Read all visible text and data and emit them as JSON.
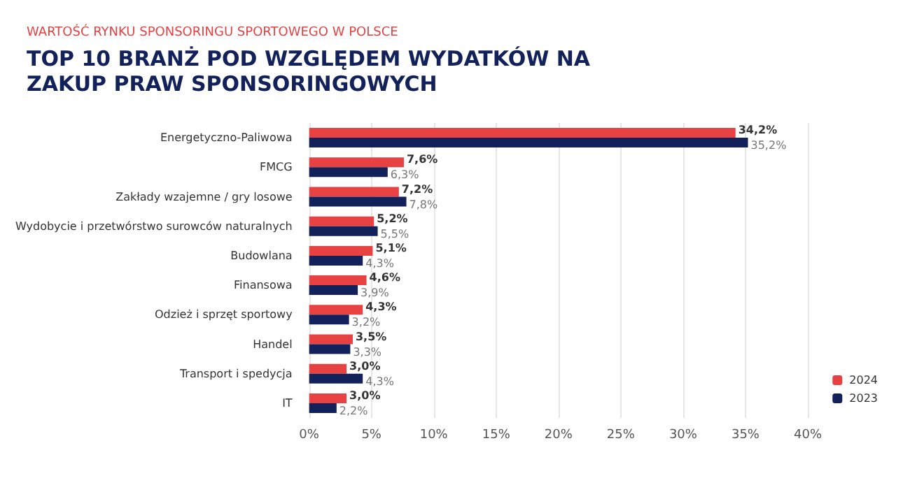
{
  "chart_data": {
    "type": "bar",
    "orientation": "horizontal",
    "subtitle": "WARTOŚĆ RYNKU SPONSORINGU SPORTOWEGO W POLSCE",
    "title": "TOP 10 BRANŻ POD WZGLĘDEM WYDATKÓW NA ZAKUP PRAW SPONSORINGOWYCH",
    "categories": [
      "Energetyczno-Paliwowa",
      "FMCG",
      "Zakłady wzajemne / gry losowe",
      "Wydobycie i przetwórstwo surowców naturalnych",
      "Budowlana",
      "Finansowa",
      "Odzież i sprzęt sportowy",
      "Handel",
      "Transport i spedycja",
      "IT"
    ],
    "series": [
      {
        "name": "2024",
        "color": "#e84142",
        "values": [
          34.2,
          7.6,
          7.2,
          5.2,
          5.1,
          4.6,
          4.3,
          3.5,
          3.0,
          3.0
        ],
        "value_labels": [
          "34,2%",
          "7,6%",
          "7,2%",
          "5,2%",
          "5,1%",
          "4,6%",
          "4,3%",
          "3,5%",
          "3,0%",
          "3,0%"
        ]
      },
      {
        "name": "2023",
        "color": "#13215a",
        "values": [
          35.2,
          6.3,
          7.8,
          5.5,
          4.3,
          3.9,
          3.2,
          3.3,
          4.3,
          2.2
        ],
        "value_labels": [
          "35,2%",
          "6,3%",
          "7,8%",
          "5,5%",
          "4,3%",
          "3,9%",
          "3,2%",
          "3,3%",
          "4,3%",
          "2,2%"
        ]
      }
    ],
    "xlim": [
      0,
      40
    ],
    "xticks": [
      {
        "value": 0,
        "label": "0%"
      },
      {
        "value": 5,
        "label": "5%"
      },
      {
        "value": 10,
        "label": "10%"
      },
      {
        "value": 15,
        "label": "15%"
      },
      {
        "value": 20,
        "label": "20%"
      },
      {
        "value": 25,
        "label": "25%"
      },
      {
        "value": 30,
        "label": "30%"
      },
      {
        "value": 35,
        "label": "35%"
      },
      {
        "value": 40,
        "label": "40%"
      }
    ],
    "grid": "x",
    "legend": "bottom right"
  }
}
